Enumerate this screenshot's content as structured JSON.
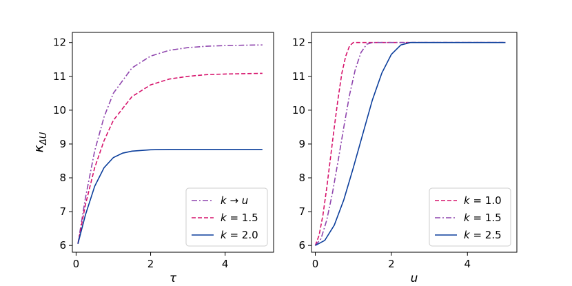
{
  "chart_data": [
    {
      "type": "line",
      "xlabel": "τ",
      "ylabel": "κ_ΔU",
      "ylabel_main": "κ",
      "ylabel_sub": "ΔU",
      "xlim": [
        -0.1,
        5.3
      ],
      "ylim": [
        5.8,
        12.3
      ],
      "xticks": [
        0,
        2,
        4
      ],
      "yticks": [
        6,
        7,
        8,
        9,
        10,
        11,
        12
      ],
      "xtick_labels": [
        "0",
        "2",
        "4"
      ],
      "ytick_labels": [
        "6",
        "7",
        "8",
        "9",
        "10",
        "11",
        "12"
      ],
      "legend_position": "lower-right",
      "series": [
        {
          "name": "k→u",
          "label_parts": {
            "var": "k",
            "op": "→",
            "val": "u",
            "val_italic": true
          },
          "color": "#8e44ad",
          "style": "dashdot",
          "x": [
            0.05,
            0.25,
            0.5,
            0.75,
            1.0,
            1.5,
            2.0,
            2.5,
            3.0,
            3.5,
            4.0,
            4.5,
            5.0
          ],
          "y": [
            6.05,
            7.4,
            8.8,
            9.8,
            10.5,
            11.25,
            11.6,
            11.77,
            11.85,
            11.89,
            11.91,
            11.92,
            11.93
          ]
        },
        {
          "name": "k = 1.5",
          "label_parts": {
            "var": "k",
            "op": "=",
            "val": "1.5",
            "val_italic": false
          },
          "color": "#d6126b",
          "style": "dashed",
          "x": [
            0.05,
            0.25,
            0.5,
            0.75,
            1.0,
            1.5,
            2.0,
            2.5,
            3.0,
            3.5,
            4.0,
            4.5,
            5.0
          ],
          "y": [
            6.05,
            7.2,
            8.3,
            9.1,
            9.7,
            10.4,
            10.75,
            10.92,
            11.0,
            11.05,
            11.07,
            11.08,
            11.09
          ]
        },
        {
          "name": "k = 2.0",
          "label_parts": {
            "var": "k",
            "op": "=",
            "val": "2.0",
            "val_italic": false
          },
          "color": "#0a3d9b",
          "style": "solid",
          "x": [
            0.05,
            0.25,
            0.5,
            0.75,
            1.0,
            1.25,
            1.5,
            2.0,
            2.5,
            3.0,
            4.0,
            5.0
          ],
          "y": [
            6.05,
            6.9,
            7.75,
            8.3,
            8.6,
            8.73,
            8.79,
            8.83,
            8.84,
            8.84,
            8.84,
            8.84
          ]
        }
      ]
    },
    {
      "type": "line",
      "xlabel": "u",
      "ylabel": "",
      "xlim": [
        -0.1,
        5.3
      ],
      "ylim": [
        5.8,
        12.3
      ],
      "xticks": [
        0,
        2,
        4
      ],
      "yticks": [
        6,
        7,
        8,
        9,
        10,
        11,
        12
      ],
      "xtick_labels": [
        "0",
        "2",
        "4"
      ],
      "ytick_labels": [
        "6",
        "7",
        "8",
        "9",
        "10",
        "11",
        "12"
      ],
      "legend_position": "lower-right",
      "series": [
        {
          "name": "k = 1.0",
          "label_parts": {
            "var": "k",
            "op": "=",
            "val": "1.0",
            "val_italic": false
          },
          "color": "#d6126b",
          "style": "dashed",
          "x": [
            0.0,
            0.1,
            0.2,
            0.3,
            0.4,
            0.5,
            0.6,
            0.7,
            0.8,
            0.9,
            1.0,
            5.0
          ],
          "y": [
            6.0,
            6.3,
            6.9,
            7.7,
            8.6,
            9.5,
            10.35,
            11.1,
            11.6,
            11.9,
            12.0,
            12.0
          ]
        },
        {
          "name": "k = 1.5",
          "label_parts": {
            "var": "k",
            "op": "=",
            "val": "1.5",
            "val_italic": false
          },
          "color": "#8e44ad",
          "style": "dashdot",
          "x": [
            0.0,
            0.15,
            0.3,
            0.45,
            0.6,
            0.75,
            0.9,
            1.05,
            1.2,
            1.35,
            1.5,
            5.0
          ],
          "y": [
            6.0,
            6.2,
            6.75,
            7.55,
            8.5,
            9.5,
            10.45,
            11.2,
            11.7,
            11.95,
            12.0,
            12.0
          ]
        },
        {
          "name": "k = 2.5",
          "label_parts": {
            "var": "k",
            "op": "=",
            "val": "2.5",
            "val_italic": false
          },
          "color": "#0a3d9b",
          "style": "solid",
          "x": [
            0.0,
            0.25,
            0.5,
            0.75,
            1.0,
            1.25,
            1.5,
            1.75,
            2.0,
            2.25,
            2.5,
            5.0
          ],
          "y": [
            6.0,
            6.15,
            6.6,
            7.35,
            8.3,
            9.3,
            10.3,
            11.1,
            11.65,
            11.93,
            12.0,
            12.0
          ]
        }
      ]
    }
  ]
}
